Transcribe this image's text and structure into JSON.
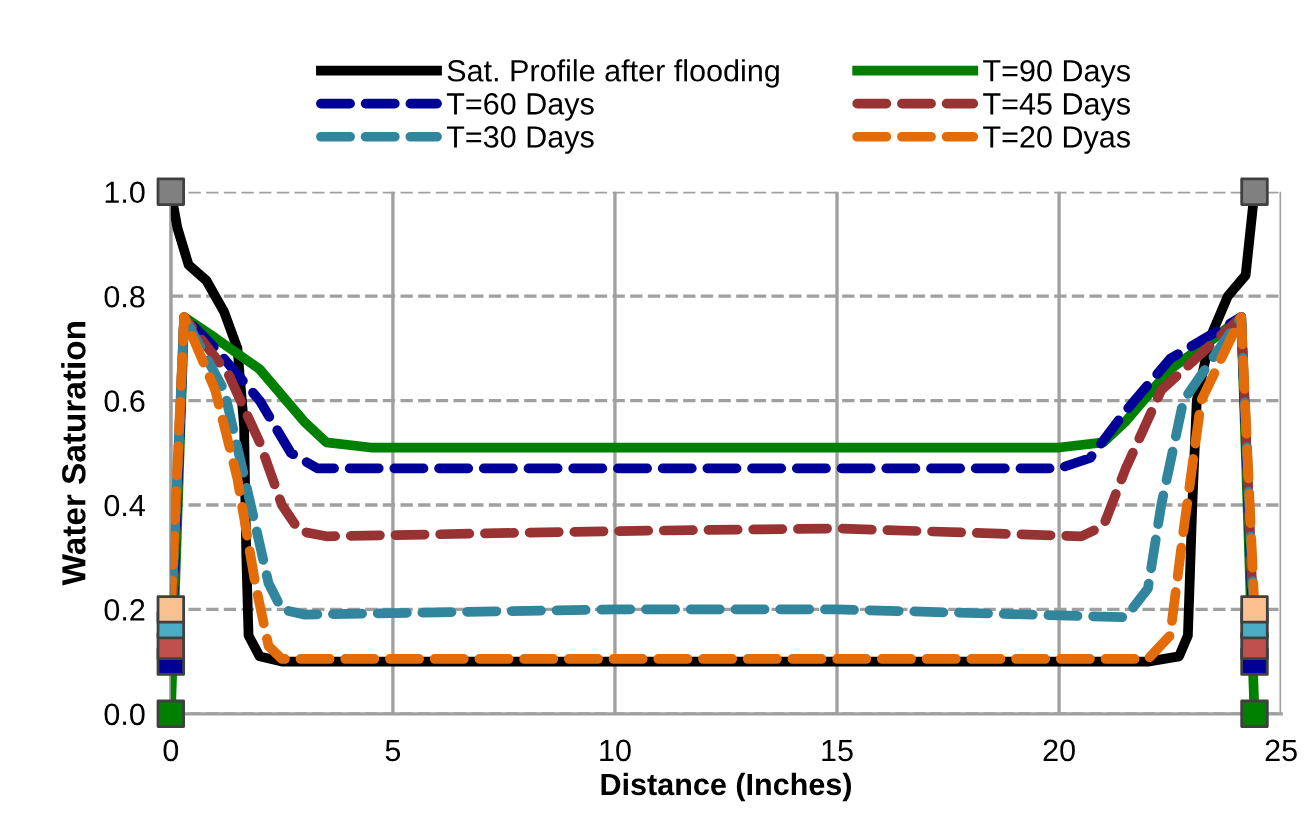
{
  "chart_data": {
    "type": "line",
    "xlabel": "Distance (Inches)",
    "ylabel": "Water Saturation",
    "xlim": [
      0,
      25
    ],
    "xticks": [
      0,
      5,
      10,
      15,
      20,
      25
    ],
    "ylim": [
      0,
      1.0
    ],
    "yticks": [
      {
        "value": 0,
        "label": "0.0"
      },
      {
        "value": 0.2,
        "label": "0.2"
      },
      {
        "value": 0.4,
        "label": "0.4"
      },
      {
        "value": 0.6,
        "label": "0.6"
      },
      {
        "value": 0.8,
        "label": "0.8"
      },
      {
        "value": 1.0,
        "label": "1.0"
      }
    ],
    "grid": true,
    "legend": "top",
    "series": [
      {
        "name": "Sat. Profile after flooding",
        "color": "#000000",
        "line_style": "solid",
        "x": [
          0,
          0.15,
          0.4,
          0.8,
          1.2,
          1.5,
          1.65,
          1.7,
          1.75,
          2.0,
          2.5,
          5,
          10,
          15,
          20,
          22,
          22.7,
          22.9,
          23.0,
          23.1,
          23.4,
          23.8,
          24.2,
          24.4
        ],
        "values": [
          1.0,
          0.93,
          0.86,
          0.83,
          0.77,
          0.7,
          0.55,
          0.3,
          0.15,
          0.11,
          0.1,
          0.1,
          0.1,
          0.1,
          0.1,
          0.1,
          0.11,
          0.15,
          0.4,
          0.6,
          0.72,
          0.8,
          0.84,
          1.0
        ]
      },
      {
        "name": "T=90 Days",
        "color": "#008000",
        "line_style": "solid",
        "x": [
          0,
          0.3,
          1,
          2,
          3,
          3.5,
          4.5,
          10,
          15,
          20,
          21,
          21.5,
          22.5,
          23.5,
          24.1,
          24.4
        ],
        "values": [
          0,
          0.76,
          0.72,
          0.66,
          0.56,
          0.52,
          0.51,
          0.51,
          0.51,
          0.51,
          0.52,
          0.56,
          0.66,
          0.72,
          0.76,
          0
        ]
      },
      {
        "name": "T=60 Days",
        "color": "#000099",
        "line_style": "dashed",
        "x": [
          0,
          0.3,
          1,
          2,
          2.7,
          3.3,
          10,
          15,
          20,
          20.7,
          21.5,
          22.5,
          24.1,
          24.4
        ],
        "values": [
          0.1,
          0.76,
          0.7,
          0.6,
          0.5,
          0.47,
          0.47,
          0.47,
          0.47,
          0.49,
          0.58,
          0.68,
          0.76,
          0.1
        ]
      },
      {
        "name": "T=45 Days",
        "color": "#993333",
        "line_style": "dashed",
        "x": [
          0,
          0.3,
          1.3,
          2,
          2.5,
          2.9,
          3.5,
          10,
          15,
          20.5,
          21,
          21.5,
          22.3,
          24.1,
          24.4
        ],
        "values": [
          0.13,
          0.76,
          0.65,
          0.52,
          0.4,
          0.35,
          0.34,
          0.35,
          0.355,
          0.34,
          0.36,
          0.47,
          0.62,
          0.76,
          0.13
        ]
      },
      {
        "name": "T=30 Days",
        "color": "#31859c",
        "line_style": "dashed",
        "x": [
          0,
          0.3,
          1.2,
          1.8,
          2.2,
          2.5,
          3,
          10,
          15,
          21.5,
          22,
          22.3,
          22.8,
          24.1,
          24.4
        ],
        "values": [
          0.17,
          0.76,
          0.62,
          0.4,
          0.25,
          0.2,
          0.19,
          0.2,
          0.2,
          0.185,
          0.24,
          0.4,
          0.6,
          0.76,
          0.17
        ]
      },
      {
        "name": "T=20 Dyas",
        "color": "#e36c09",
        "line_style": "dashed",
        "x": [
          0,
          0.3,
          1,
          1.5,
          1.9,
          2.2,
          2.5,
          10,
          20,
          22,
          22.5,
          22.8,
          23.2,
          24.1,
          24.4
        ],
        "values": [
          0.2,
          0.76,
          0.62,
          0.45,
          0.25,
          0.13,
          0.105,
          0.105,
          0.105,
          0.105,
          0.15,
          0.35,
          0.6,
          0.76,
          0.2
        ]
      },
      {
        "type": "scatter",
        "marker": "square",
        "color": "#808080",
        "x": [
          0,
          24.4
        ],
        "values": [
          1.0,
          1.0
        ]
      },
      {
        "type": "scatter",
        "marker": "square",
        "color": "#008000",
        "x": [
          0,
          24.4
        ],
        "values": [
          0,
          0
        ]
      },
      {
        "type": "scatter",
        "marker": "square",
        "color": "#000099",
        "x": [
          0,
          24.4
        ],
        "values": [
          0.1,
          0.1
        ]
      },
      {
        "type": "scatter",
        "marker": "square",
        "color": "#c0504d",
        "x": [
          0,
          24.4
        ],
        "values": [
          0.13,
          0.13
        ]
      },
      {
        "type": "scatter",
        "marker": "square",
        "color": "#4bacc6",
        "x": [
          0,
          24.4
        ],
        "values": [
          0.17,
          0.17
        ]
      },
      {
        "type": "scatter",
        "marker": "square",
        "color": "#fac090",
        "x": [
          0,
          24.4
        ],
        "values": [
          0.2,
          0.2
        ]
      }
    ]
  }
}
